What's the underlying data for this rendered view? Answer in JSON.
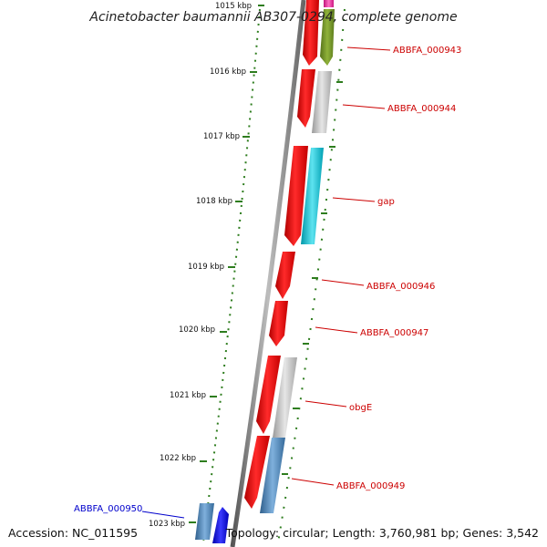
{
  "title": "Acinetobacter baumannii AB307-0294, complete genome",
  "accession": "Accession: NC_011595",
  "summary": "Topology: circular; Length: 3,760,981 bp; Genes: 3,542",
  "colors": {
    "tick": "#2e7d1e",
    "label_red": "#cc0000",
    "label_blue": "#0000cc",
    "backbone": "#777777"
  },
  "ticks": [
    "1015 kbp",
    "1016 kbp",
    "1017 kbp",
    "1018 kbp",
    "1019 kbp",
    "1020 kbp",
    "1021 kbp",
    "1022 kbp",
    "1023 kbp"
  ],
  "genes": [
    {
      "label": "ABBFA_000943",
      "label_color": "#cc0000"
    },
    {
      "label": "ABBFA_000944",
      "label_color": "#cc0000"
    },
    {
      "label": "gap",
      "label_color": "#cc0000"
    },
    {
      "label": "ABBFA_000946",
      "label_color": "#cc0000"
    },
    {
      "label": "ABBFA_000947",
      "label_color": "#cc0000"
    },
    {
      "label": "obgE",
      "label_color": "#cc0000"
    },
    {
      "label": "ABBFA_000949",
      "label_color": "#cc0000"
    },
    {
      "label": "ABBFA_000950",
      "label_color": "#0000cc"
    }
  ],
  "feature_colors": {
    "cds": "#ee0000",
    "cog_olive": "#6b8e23",
    "cog_gray": "#bdbdbd",
    "cog_cyan": "#00bcd4",
    "cog_steel": "#4682b4",
    "cog_blue": "#0000ee",
    "cog_pink": "#ff2fa6"
  }
}
